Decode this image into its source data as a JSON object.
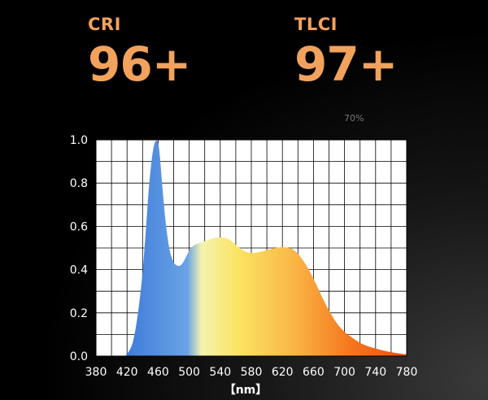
{
  "metrics": {
    "cri": {
      "label": "CRI",
      "value": "96+"
    },
    "tlci": {
      "label": "TLCI",
      "value": "97+"
    },
    "percent": "70%"
  },
  "chart_data": {
    "type": "area",
    "title": "",
    "xlabel": "【nm】",
    "ylabel": "",
    "xlim": [
      380,
      780
    ],
    "ylim": [
      0,
      1.0
    ],
    "xticks": [
      "380",
      "420",
      "460",
      "500",
      "540",
      "580",
      "620",
      "660",
      "700",
      "740",
      "780"
    ],
    "yticks": [
      "0.0",
      "0.2",
      "0.4",
      "0.6",
      "0.8",
      "1.0"
    ],
    "grid": true,
    "x": [
      418,
      425,
      430,
      435,
      440,
      445,
      448,
      452,
      455,
      458,
      460,
      462,
      465,
      470,
      475,
      480,
      485,
      490,
      495,
      500,
      505,
      510,
      520,
      530,
      540,
      550,
      560,
      570,
      580,
      590,
      600,
      610,
      620,
      630,
      635,
      640,
      650,
      660,
      670,
      680,
      690,
      700,
      710,
      720,
      730,
      740,
      750,
      760,
      770,
      780
    ],
    "values": [
      0.0,
      0.03,
      0.1,
      0.22,
      0.38,
      0.62,
      0.78,
      0.92,
      0.985,
      1.0,
      0.99,
      0.94,
      0.8,
      0.6,
      0.48,
      0.43,
      0.415,
      0.42,
      0.45,
      0.49,
      0.51,
      0.52,
      0.53,
      0.545,
      0.55,
      0.545,
      0.515,
      0.485,
      0.475,
      0.48,
      0.49,
      0.5,
      0.505,
      0.5,
      0.49,
      0.475,
      0.425,
      0.36,
      0.28,
      0.21,
      0.15,
      0.11,
      0.085,
      0.06,
      0.045,
      0.035,
      0.025,
      0.018,
      0.012,
      0.008
    ]
  },
  "colors": {
    "accent": "#f2a25c",
    "spectrum": [
      "#3f7bd9",
      "#69a3e6",
      "#f3f3ae",
      "#fbe463",
      "#f9b645",
      "#f6761e",
      "#f04e0c"
    ]
  }
}
